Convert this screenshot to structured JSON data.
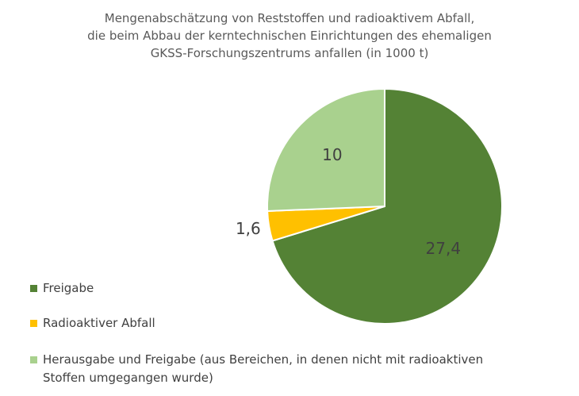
{
  "chart_data": {
    "type": "pie",
    "title": "Mengenabschätzung von Reststoffen und radioaktivem Abfall,\ndie beim Abbau der kerntechnischen Einrichtungen des ehemaligen\nGKSS-Forschungszentrums anfallen (in 1000 t)",
    "categories": [
      "Freigabe",
      "Radioaktiver Abfall",
      "Herausgabe und Freigabe (aus Bereichen, in denen nicht mit radioaktiven Stoffen umgegangen wurde)"
    ],
    "values": [
      27.4,
      1.6,
      10
    ],
    "value_labels": [
      "27,4",
      "1,6",
      "10"
    ],
    "colors": [
      "#548235",
      "#ffc000",
      "#a9d18e"
    ]
  }
}
